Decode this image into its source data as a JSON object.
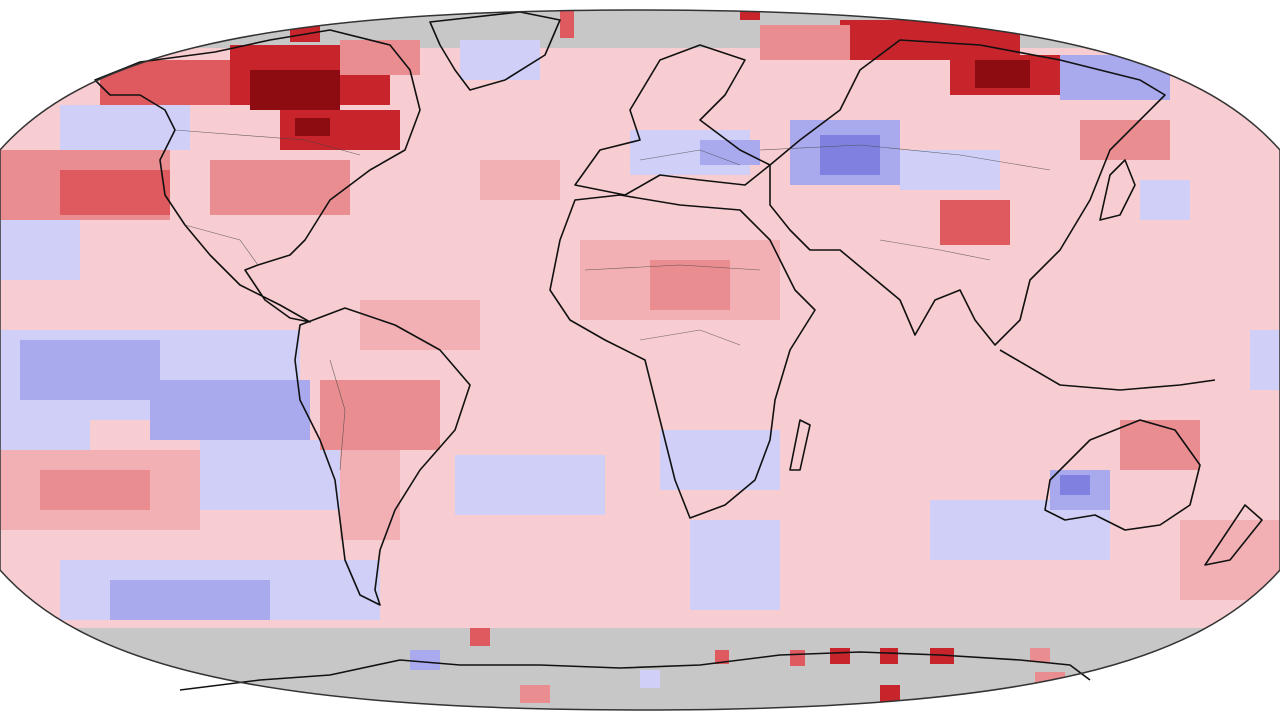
{
  "map": {
    "projection": "robinson",
    "type": "gridded temperature anomaly",
    "colors": {
      "outside": "#ffffff",
      "nodata": "#c7c7c7",
      "warm_1": "#f8cdd1",
      "warm_2": "#f2b0b4",
      "warm_3": "#ea8d91",
      "warm_4": "#de5a5f",
      "warm_5": "#c8242b",
      "warm_6": "#8c0c12",
      "cool_1": "#cfcff8",
      "cool_2": "#a9a9ee",
      "cool_3": "#7f80df",
      "coast": "#111111",
      "border": "#444444"
    }
  }
}
